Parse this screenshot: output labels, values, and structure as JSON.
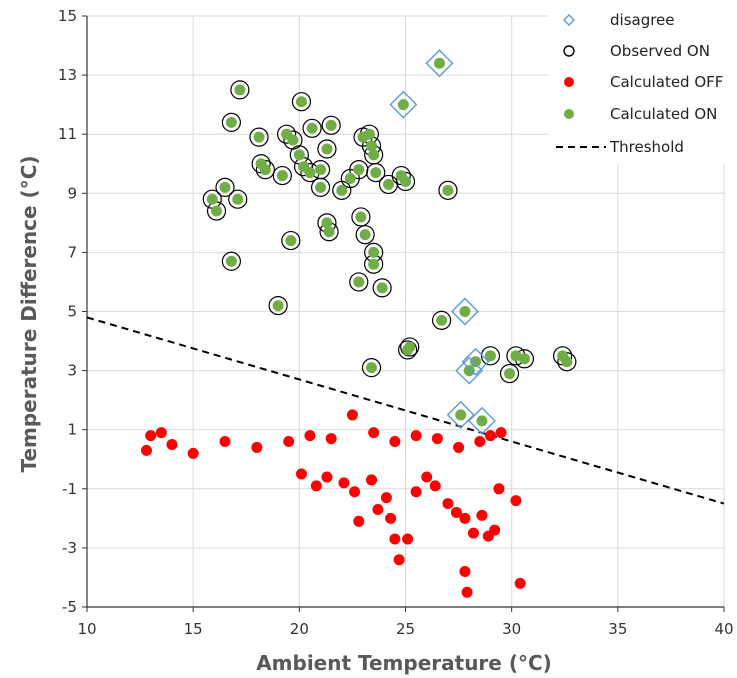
{
  "chart_data": {
    "type": "scatter",
    "xlabel": "Ambient Temperature (°C)",
    "ylabel": "Temperature Difference (°C)",
    "xlim": [
      10,
      40
    ],
    "ylim": [
      -5,
      15
    ],
    "x_ticks": [
      "10",
      "15",
      "20",
      "25",
      "30",
      "35",
      "40"
    ],
    "y_ticks": [
      "-5",
      "-3",
      "-1",
      "1",
      "3",
      "5",
      "7",
      "9",
      "11",
      "13",
      "15"
    ],
    "grid": true,
    "legend_position": "top-right",
    "legend": [
      "disagree",
      "Observed ON",
      "Calculated OFF",
      "Calculated ON",
      "Threshold"
    ],
    "colors": {
      "disagree": "#5b9bd5",
      "observed_on": "#000000",
      "calculated_off": "#ff0000",
      "calculated_on": "#70ad47",
      "threshold": "#000000",
      "grid": "#d9d9d9"
    },
    "threshold": [
      [
        10,
        4.8
      ],
      [
        40,
        -1.5
      ]
    ],
    "series": [
      {
        "name": "disagree",
        "marker": "diamond",
        "points": [
          [
            26.6,
            13.4
          ],
          [
            24.9,
            12.0
          ],
          [
            27.6,
            1.5
          ],
          [
            28.6,
            1.3
          ],
          [
            28.0,
            3.0
          ],
          [
            28.3,
            3.3
          ],
          [
            27.8,
            5.0
          ]
        ]
      },
      {
        "name": "Observed ON",
        "marker": "circle-open",
        "points": [
          [
            17.2,
            12.5
          ],
          [
            16.8,
            11.4
          ],
          [
            20.1,
            12.1
          ],
          [
            18.1,
            10.9
          ],
          [
            19.4,
            11.0
          ],
          [
            20.6,
            11.2
          ],
          [
            21.5,
            11.3
          ],
          [
            19.7,
            10.8
          ],
          [
            20.0,
            10.3
          ],
          [
            18.2,
            10.0
          ],
          [
            18.4,
            9.8
          ],
          [
            16.5,
            9.2
          ],
          [
            15.9,
            8.8
          ],
          [
            17.1,
            8.8
          ],
          [
            16.1,
            8.4
          ],
          [
            19.2,
            9.6
          ],
          [
            20.2,
            9.9
          ],
          [
            20.5,
            9.7
          ],
          [
            21.0,
            9.8
          ],
          [
            21.3,
            10.5
          ],
          [
            19.6,
            7.4
          ],
          [
            21.3,
            8.0
          ],
          [
            21.4,
            7.7
          ],
          [
            16.8,
            6.7
          ],
          [
            19.0,
            5.2
          ],
          [
            22.4,
            9.5
          ],
          [
            22.8,
            9.8
          ],
          [
            23.0,
            10.9
          ],
          [
            23.3,
            11.0
          ],
          [
            23.4,
            10.6
          ],
          [
            23.5,
            10.3
          ],
          [
            23.6,
            9.7
          ],
          [
            22.9,
            8.2
          ],
          [
            23.1,
            7.6
          ],
          [
            23.5,
            7.0
          ],
          [
            23.5,
            6.6
          ],
          [
            22.8,
            6.0
          ],
          [
            23.9,
            5.8
          ],
          [
            23.4,
            3.1
          ],
          [
            25.1,
            3.7
          ],
          [
            25.2,
            3.8
          ],
          [
            26.7,
            4.7
          ],
          [
            27.0,
            9.1
          ],
          [
            25.0,
            9.4
          ],
          [
            24.8,
            9.6
          ],
          [
            24.2,
            9.3
          ],
          [
            21.0,
            9.2
          ],
          [
            22.0,
            9.1
          ],
          [
            29.0,
            3.5
          ],
          [
            29.9,
            2.9
          ],
          [
            30.2,
            3.5
          ],
          [
            30.6,
            3.4
          ],
          [
            32.6,
            3.3
          ],
          [
            32.4,
            3.5
          ]
        ]
      },
      {
        "name": "Calculated OFF",
        "marker": "circle-filled",
        "points": [
          [
            12.8,
            0.3
          ],
          [
            13.0,
            0.8
          ],
          [
            13.5,
            0.9
          ],
          [
            14.0,
            0.5
          ],
          [
            15.0,
            0.2
          ],
          [
            16.5,
            0.6
          ],
          [
            18.0,
            0.4
          ],
          [
            19.5,
            0.6
          ],
          [
            20.5,
            0.8
          ],
          [
            21.5,
            0.7
          ],
          [
            22.5,
            1.5
          ],
          [
            23.5,
            0.9
          ],
          [
            24.5,
            0.6
          ],
          [
            25.5,
            0.8
          ],
          [
            26.5,
            0.7
          ],
          [
            27.5,
            0.4
          ],
          [
            28.5,
            0.6
          ],
          [
            29.0,
            0.8
          ],
          [
            29.5,
            0.9
          ],
          [
            20.1,
            -0.5
          ],
          [
            20.8,
            -0.9
          ],
          [
            21.3,
            -0.6
          ],
          [
            22.1,
            -0.8
          ],
          [
            22.6,
            -1.1
          ],
          [
            22.8,
            -2.1
          ],
          [
            23.4,
            -0.7
          ],
          [
            23.7,
            -1.7
          ],
          [
            24.1,
            -1.3
          ],
          [
            24.3,
            -2.0
          ],
          [
            24.5,
            -2.7
          ],
          [
            24.7,
            -3.4
          ],
          [
            25.1,
            -2.7
          ],
          [
            25.5,
            -1.1
          ],
          [
            26.0,
            -0.6
          ],
          [
            26.4,
            -0.9
          ],
          [
            27.0,
            -1.5
          ],
          [
            27.4,
            -1.8
          ],
          [
            27.8,
            -2.0
          ],
          [
            28.2,
            -2.5
          ],
          [
            28.6,
            -1.9
          ],
          [
            28.9,
            -2.6
          ],
          [
            29.2,
            -2.4
          ],
          [
            29.4,
            -1.0
          ],
          [
            30.2,
            -1.4
          ],
          [
            27.8,
            -3.8
          ],
          [
            27.9,
            -4.5
          ],
          [
            30.4,
            -4.2
          ]
        ]
      },
      {
        "name": "Calculated ON",
        "marker": "circle-filled",
        "points": [
          [
            17.2,
            12.5
          ],
          [
            16.8,
            11.4
          ],
          [
            20.1,
            12.1
          ],
          [
            18.1,
            10.9
          ],
          [
            19.4,
            11.0
          ],
          [
            20.6,
            11.2
          ],
          [
            21.5,
            11.3
          ],
          [
            19.7,
            10.8
          ],
          [
            20.0,
            10.3
          ],
          [
            18.2,
            10.0
          ],
          [
            18.4,
            9.8
          ],
          [
            16.5,
            9.2
          ],
          [
            15.9,
            8.8
          ],
          [
            17.1,
            8.8
          ],
          [
            16.1,
            8.4
          ],
          [
            19.2,
            9.6
          ],
          [
            20.2,
            9.9
          ],
          [
            20.5,
            9.7
          ],
          [
            21.0,
            9.8
          ],
          [
            21.3,
            10.5
          ],
          [
            19.6,
            7.4
          ],
          [
            21.3,
            8.0
          ],
          [
            21.4,
            7.7
          ],
          [
            16.8,
            6.7
          ],
          [
            19.0,
            5.2
          ],
          [
            22.4,
            9.5
          ],
          [
            22.8,
            9.8
          ],
          [
            23.0,
            10.9
          ],
          [
            23.3,
            11.0
          ],
          [
            23.4,
            10.6
          ],
          [
            23.5,
            10.3
          ],
          [
            23.6,
            9.7
          ],
          [
            22.9,
            8.2
          ],
          [
            23.1,
            7.6
          ],
          [
            23.5,
            7.0
          ],
          [
            23.5,
            6.6
          ],
          [
            22.8,
            6.0
          ],
          [
            23.9,
            5.8
          ],
          [
            23.4,
            3.1
          ],
          [
            25.1,
            3.7
          ],
          [
            25.2,
            3.8
          ],
          [
            26.7,
            4.7
          ],
          [
            27.0,
            9.1
          ],
          [
            25.0,
            9.4
          ],
          [
            24.8,
            9.6
          ],
          [
            24.2,
            9.3
          ],
          [
            21.0,
            9.2
          ],
          [
            22.0,
            9.1
          ],
          [
            29.0,
            3.5
          ],
          [
            29.9,
            2.9
          ],
          [
            30.2,
            3.5
          ],
          [
            30.6,
            3.4
          ],
          [
            32.6,
            3.3
          ],
          [
            32.4,
            3.5
          ],
          [
            26.6,
            13.4
          ],
          [
            24.9,
            12.0
          ],
          [
            27.6,
            1.5
          ],
          [
            28.6,
            1.3
          ],
          [
            28.0,
            3.0
          ],
          [
            28.3,
            3.3
          ],
          [
            27.8,
            5.0
          ]
        ]
      }
    ]
  }
}
